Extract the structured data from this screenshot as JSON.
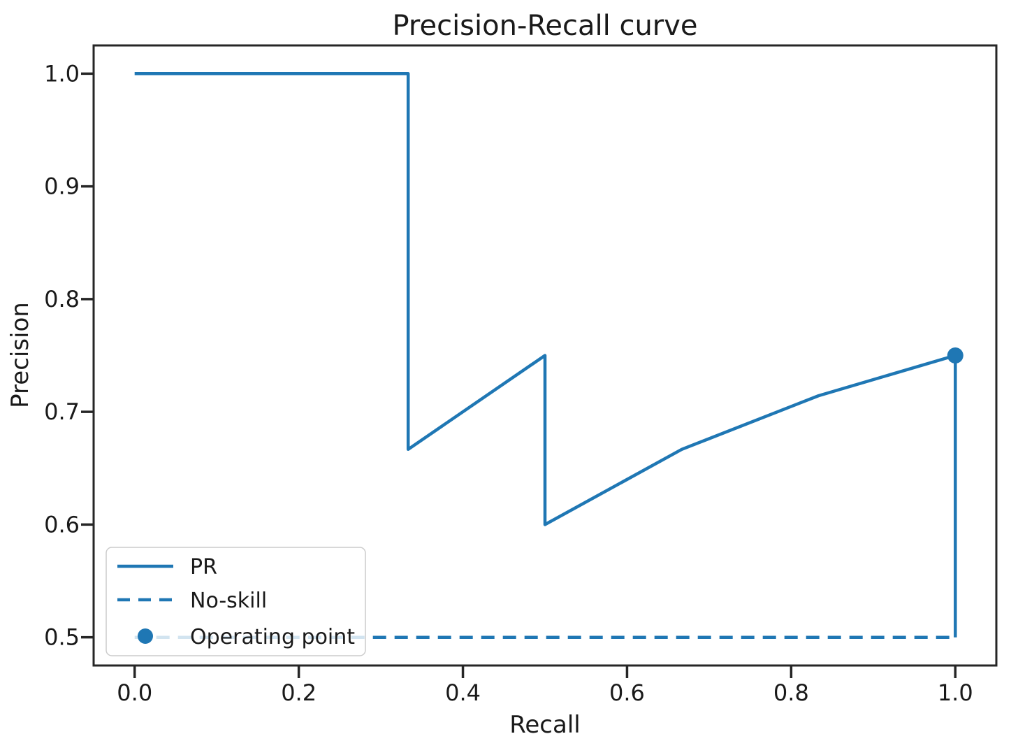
{
  "chart_data": {
    "type": "line",
    "title": "Precision-Recall curve",
    "xlabel": "Recall",
    "ylabel": "Precision",
    "xlim": [
      -0.05,
      1.05
    ],
    "ylim": [
      0.475,
      1.025
    ],
    "xticks": [
      0.0,
      0.2,
      0.4,
      0.6,
      0.8,
      1.0
    ],
    "xtick_labels": [
      "0.0",
      "0.2",
      "0.4",
      "0.6",
      "0.8",
      "1.0"
    ],
    "yticks": [
      0.5,
      0.6,
      0.7,
      0.8,
      0.9,
      1.0
    ],
    "ytick_labels": [
      "0.5",
      "0.6",
      "0.7",
      "0.8",
      "0.9",
      "1.0"
    ],
    "grid": false,
    "legend": {
      "position": "lower-left",
      "entries": [
        "PR",
        "No-skill",
        "Operating point"
      ]
    },
    "colors": {
      "series_blue": "#1f77b4",
      "text": "#1a1a1a",
      "axis": "#262626",
      "legend_border": "#cccccc",
      "legend_bg": "#ffffff"
    },
    "series": [
      {
        "name": "PR",
        "type": "line",
        "linestyle": "solid",
        "color": "#1f77b4",
        "x": [
          0.0,
          0.1667,
          0.3333,
          0.3333,
          0.5,
          0.5,
          0.6667,
          0.8333,
          1.0,
          1.0
        ],
        "y": [
          1.0,
          1.0,
          1.0,
          0.6667,
          0.75,
          0.6,
          0.6667,
          0.7143,
          0.75,
          0.5
        ]
      },
      {
        "name": "No-skill",
        "type": "line",
        "linestyle": "dashed",
        "color": "#1f77b4",
        "x": [
          0.0,
          1.0
        ],
        "y": [
          0.5,
          0.5
        ]
      },
      {
        "name": "Operating point",
        "type": "scatter",
        "marker": "circle",
        "color": "#1f77b4",
        "x": [
          1.0
        ],
        "y": [
          0.75
        ]
      }
    ]
  }
}
